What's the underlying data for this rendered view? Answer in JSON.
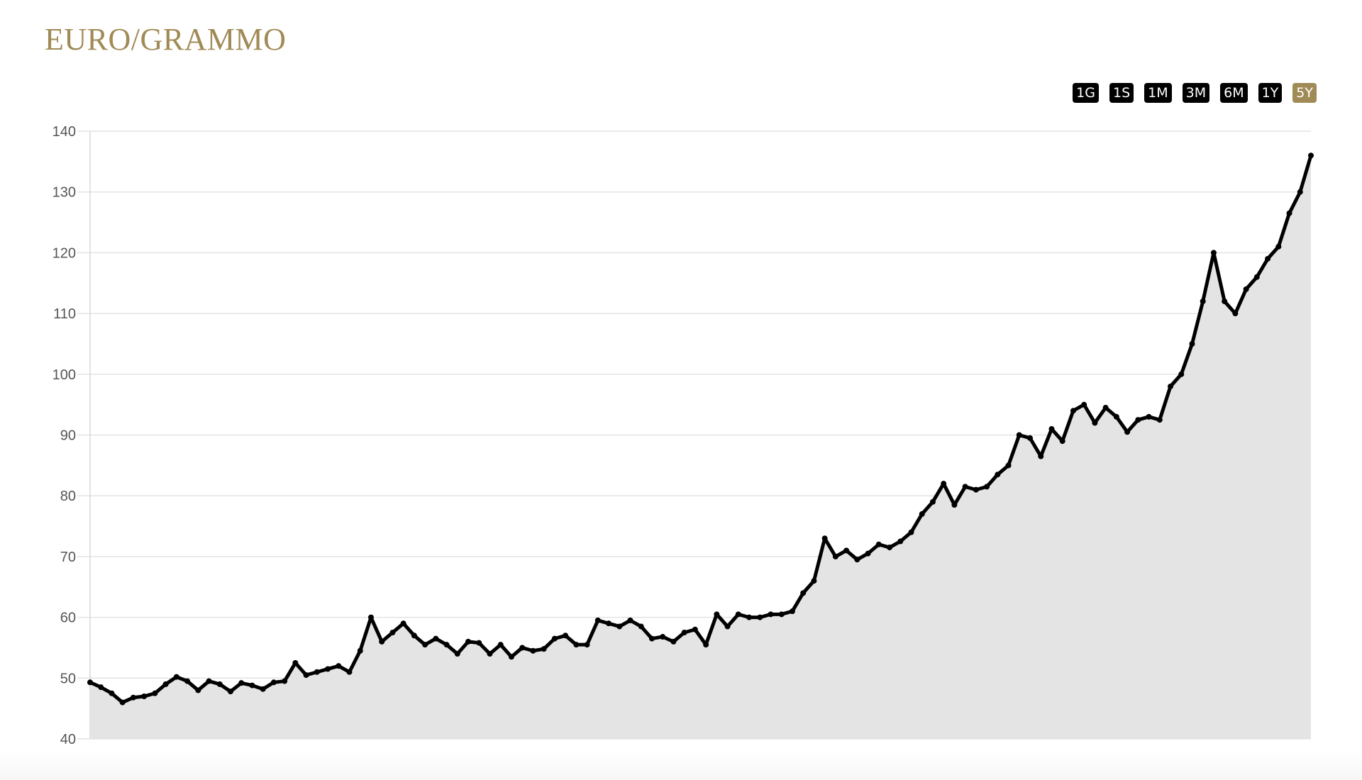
{
  "header": {
    "title": "EURO/GRAMMO"
  },
  "ranges": [
    {
      "label": "1G"
    },
    {
      "label": "1S"
    },
    {
      "label": "1M"
    },
    {
      "label": "3M"
    },
    {
      "label": "6M"
    },
    {
      "label": "1Y"
    },
    {
      "label": "5Y",
      "active": true
    }
  ],
  "chart_data": {
    "type": "area",
    "title": "",
    "xlabel": "",
    "ylabel": "",
    "ylim": [
      40,
      140
    ],
    "yticks": [
      40,
      50,
      60,
      70,
      80,
      90,
      100,
      110,
      120,
      130,
      140
    ],
    "grid": true,
    "colors": {
      "line": "#000000",
      "fill": "#e4e4e4",
      "accent": "#a08a55"
    },
    "values": [
      49.3,
      48.5,
      47.5,
      46,
      46.8,
      47,
      47.5,
      49,
      50.2,
      49.5,
      48,
      49.5,
      49,
      47.8,
      49.2,
      48.8,
      48.2,
      49.3,
      49.5,
      52.5,
      50.5,
      51,
      51.5,
      52,
      51,
      54.5,
      60,
      56,
      57.5,
      59,
      57,
      55.5,
      56.5,
      55.5,
      54,
      56,
      55.8,
      54,
      55.5,
      53.5,
      55,
      54.5,
      54.8,
      56.5,
      57,
      55.5,
      55.5,
      59.5,
      59,
      58.5,
      59.5,
      58.5,
      56.5,
      56.8,
      56,
      57.5,
      58,
      55.5,
      60.5,
      58.5,
      60.5,
      60,
      60,
      60.5,
      60.5,
      61,
      64,
      66,
      73,
      70,
      71,
      69.5,
      70.5,
      72,
      71.5,
      72.5,
      74,
      77,
      79,
      82,
      78.5,
      81.5,
      81,
      81.5,
      83.5,
      85,
      90,
      89.5,
      86.5,
      91,
      89,
      94,
      95,
      92,
      94.5,
      93,
      90.5,
      92.5,
      93,
      92.5,
      98,
      100,
      105,
      112,
      120,
      112,
      110,
      114,
      116,
      119,
      121,
      126.5,
      130,
      136
    ]
  }
}
